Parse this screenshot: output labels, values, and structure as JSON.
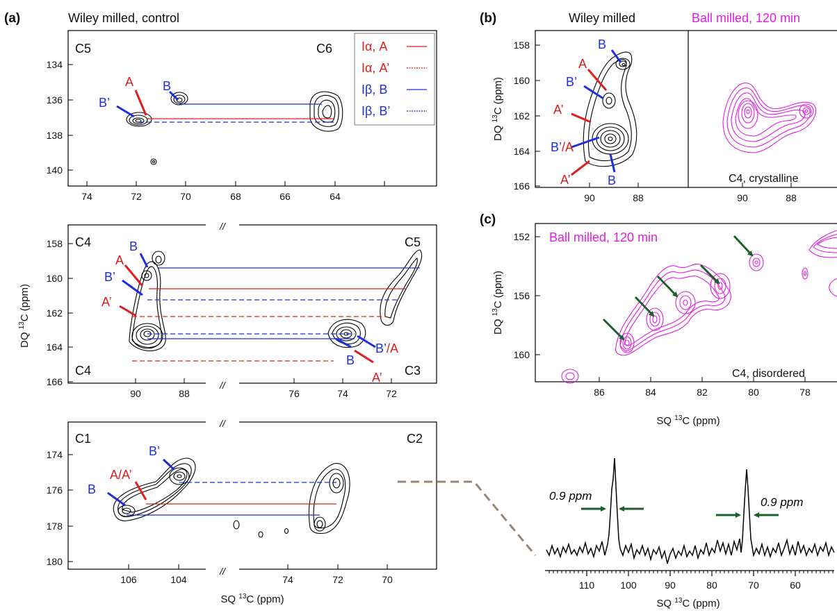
{
  "panel_labels": {
    "a": "(a)",
    "b": "(b)",
    "c": "(c)"
  },
  "panel_a": {
    "title": "Wiley milled, control",
    "top": {
      "corner_left": "C5",
      "corner_right": "C6",
      "yticks": [
        "134",
        "136",
        "138",
        "140"
      ],
      "xticks": [
        "74",
        "72",
        "70",
        "68",
        "66",
        "64"
      ],
      "labels": {
        "A": "A",
        "B": "B",
        "Bp": "B’"
      },
      "legend": [
        {
          "label": "Iα, A",
          "color": "#e01c1c",
          "style": "solid"
        },
        {
          "label": "Iα, A’",
          "color": "#e01c1c",
          "style": "dotted"
        },
        {
          "label": "Iβ, B",
          "color": "#1c2ee0",
          "style": "solid"
        },
        {
          "label": "Iβ, B’",
          "color": "#1c2ee0",
          "style": "dotted"
        }
      ]
    },
    "middle": {
      "corner_tl": "C4",
      "corner_tr": "C5",
      "corner_bl": "C4",
      "corner_br": "C3",
      "yticks": [
        "158",
        "160",
        "162",
        "164",
        "166"
      ],
      "xticks_left": [
        "90",
        "88"
      ],
      "xticks_right": [
        "76",
        "74",
        "72"
      ],
      "break": "//",
      "labels": {
        "B": "B",
        "A": "A",
        "Bp": "B’",
        "Ap": "A’",
        "B2": "B",
        "BpA_1": "B’",
        "BpA_2": "/A",
        "Ap2": "A’"
      }
    },
    "bottom": {
      "corner_left": "C1",
      "corner_right": "C2",
      "yticks": [
        "174",
        "176",
        "178",
        "180"
      ],
      "xticks_left": [
        "106",
        "104"
      ],
      "xticks_right": [
        "74",
        "72",
        "70"
      ],
      "break": "//",
      "labels": {
        "B": "B",
        "AAp": "A/A’",
        "Bp": "B’"
      }
    },
    "ylabel": "DQ 13C (ppm)",
    "xlabel": "SQ 13C (ppm)"
  },
  "panel_b": {
    "title_left": "Wiley milled",
    "title_right": "Ball milled, 120 min",
    "note": "C4, crystalline",
    "yticks": [
      "158",
      "160",
      "162",
      "164",
      "166"
    ],
    "xticks_left": [
      "90",
      "88"
    ],
    "xticks_right": [
      "90",
      "88"
    ],
    "ylabel": "DQ 13C (ppm)",
    "labels": {
      "B": "B",
      "A": "A",
      "Bp": "B’",
      "Ap": "A’",
      "BpA_1": "B’",
      "BpA_2": "/A",
      "Ap2": "A’",
      "B2": "B"
    }
  },
  "panel_c": {
    "title": "Ball milled, 120 min",
    "note": "C4, disordered",
    "yticks": [
      "152",
      "156",
      "160"
    ],
    "xticks": [
      "86",
      "84",
      "82",
      "80",
      "78"
    ],
    "ylabel": "DQ 13C (ppm)",
    "xlabel": "SQ 13C (ppm)"
  },
  "panel_d": {
    "width_label_left": "0.9 ppm",
    "width_label_right": "0.9 ppm",
    "xticks": [
      "110",
      "100",
      "90",
      "80",
      "70",
      "60"
    ],
    "xlabel": "SQ 13C (ppm)"
  }
}
